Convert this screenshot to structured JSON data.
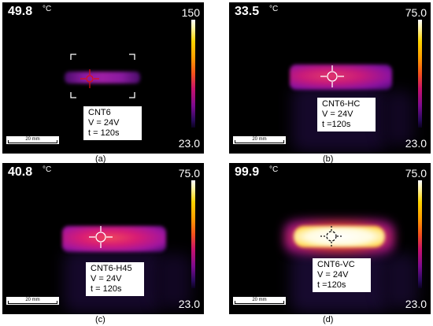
{
  "panels": [
    {
      "temp": "49.8",
      "unit": "°C",
      "scale_max": "150",
      "scale_min": "23.0",
      "scalebar": "20 mm",
      "label": [
        "CNT6",
        "V = 24V",
        "t = 120s"
      ],
      "caption": "(a)"
    },
    {
      "temp": "33.5",
      "unit": "°C",
      "scale_max": "75.0",
      "scale_min": "23.0",
      "scalebar": "20 mm",
      "label": [
        "CNT6-HC",
        "V = 24V",
        "t =120s"
      ],
      "caption": "(b)"
    },
    {
      "temp": "40.8",
      "unit": "°C",
      "scale_max": "75.0",
      "scale_min": "23.0",
      "scalebar": "20 mm",
      "label": [
        "CNT6-H45",
        "V = 24V",
        "t = 120s"
      ],
      "caption": "(c)"
    },
    {
      "temp": "99.9",
      "unit": "°C",
      "scale_max": "75.0",
      "scale_min": "23.0",
      "scalebar": "20 mm",
      "label": [
        "CNT6-VC",
        "V = 24V",
        "t =120s"
      ],
      "caption": "(d)"
    }
  ]
}
